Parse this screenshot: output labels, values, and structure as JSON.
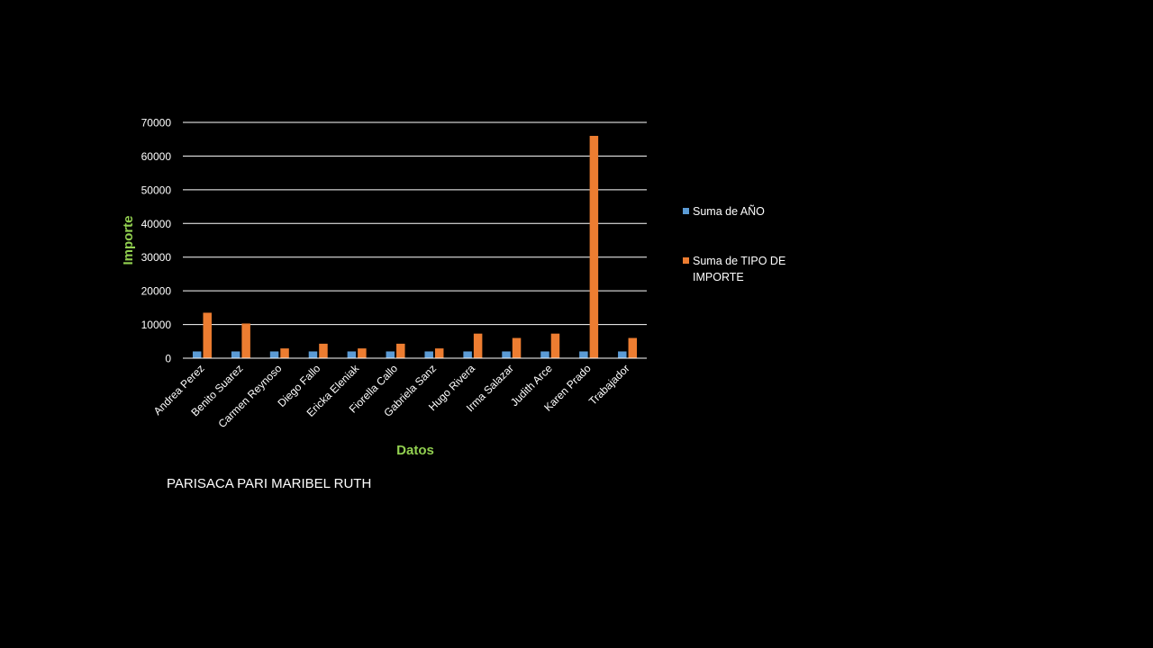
{
  "chart_data": {
    "type": "bar",
    "title": "",
    "xlabel": "Datos",
    "ylabel": "Importe",
    "ylim": [
      0,
      70000
    ],
    "yticks": [
      0,
      10000,
      20000,
      30000,
      40000,
      50000,
      60000,
      70000
    ],
    "grid": true,
    "legend_position": "right",
    "categories": [
      "Andrea Perez",
      "Benito Suarez",
      "Carmen Reynoso",
      "Diego Fallo",
      "Ericka Eleniak",
      "Fiorella Callo",
      "Gabriela Sanz",
      "Hugo Rivera",
      "Irma Salazar",
      "Judith Arce",
      "Karen Prado",
      "Trabajador"
    ],
    "series": [
      {
        "name": "Suma de AÑO",
        "color": "#5b9bd5",
        "values": [
          2010,
          2010,
          2010,
          2010,
          2010,
          2010,
          2010,
          2010,
          2010,
          2010,
          2010,
          2010
        ]
      },
      {
        "name": "Suma de TIPO DE IMPORTE",
        "color": "#ed7d31",
        "values": [
          13500,
          10300,
          2900,
          4300,
          2900,
          4300,
          2900,
          7300,
          6000,
          7300,
          66000,
          6000
        ]
      }
    ],
    "axis_title_color": "#92d050"
  },
  "legend": {
    "line1": [
      "Suma de AÑO"
    ],
    "line2": [
      "Suma de TIPO DE",
      "IMPORTE"
    ]
  },
  "author": "PARISACA PARI MARIBEL RUTH"
}
